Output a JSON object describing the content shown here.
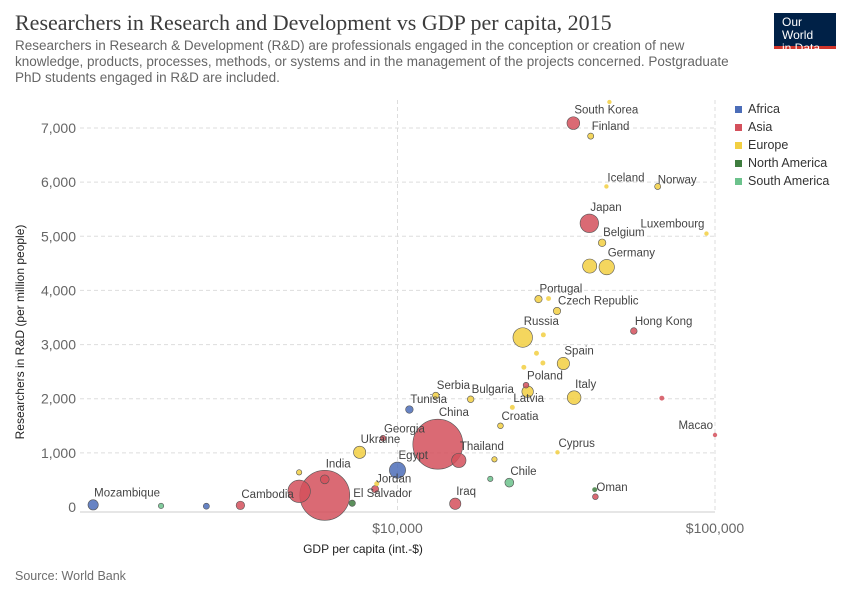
{
  "header": {
    "title": "Researchers in Research and Development vs GDP per capita, 2015",
    "subtitle": "Researchers in Research & Development (R&D) are professionals engaged in the conception or creation of new knowledge, products, processes, methods, or systems and in the management of the projects concerned. Postgraduate PhD students engaged in R&D are included.",
    "logo_line1": "Our World",
    "logo_line2": "in Data"
  },
  "footer": {
    "source": "Source: World Bank"
  },
  "colors": {
    "Africa": "#4c6db8",
    "Asia": "#d4505c",
    "Europe": "#f2cf42",
    "North America": "#3f7d3f",
    "South America": "#6cc28c"
  },
  "chart_data": {
    "type": "scatter",
    "xlabel": "GDP per capita (int.-$)",
    "ylabel": "Researchers in R&D (per million people)",
    "x_scale": "log",
    "xlim": [
      1000,
      100000
    ],
    "ylim": [
      0,
      7500
    ],
    "x_ticks": [
      {
        "value": 10000,
        "label": "$10,000"
      },
      {
        "value": 100000,
        "label": "$100,000"
      }
    ],
    "y_ticks": [
      {
        "value": 0,
        "label": "0"
      },
      {
        "value": 1000,
        "label": "1,000"
      },
      {
        "value": 2000,
        "label": "2,000"
      },
      {
        "value": 3000,
        "label": "3,000"
      },
      {
        "value": 4000,
        "label": "4,000"
      },
      {
        "value": 5000,
        "label": "5,000"
      },
      {
        "value": 6000,
        "label": "6,000"
      },
      {
        "value": 7000,
        "label": "7,000"
      }
    ],
    "grid": true,
    "legend_position": "right",
    "legend": [
      "Africa",
      "Asia",
      "Europe",
      "North America",
      "South America"
    ],
    "points": [
      {
        "label": "Mozambique",
        "region": "Africa",
        "x": 1100,
        "y": 40,
        "pop": 28
      },
      {
        "label": "",
        "region": "South America",
        "x": 1800,
        "y": 20,
        "pop": 3
      },
      {
        "label": "",
        "region": "Africa",
        "x": 2500,
        "y": 15,
        "pop": 5
      },
      {
        "label": "Cambodia",
        "region": "Asia",
        "x": 3200,
        "y": 30,
        "pop": 16
      },
      {
        "label": "",
        "region": "Asia",
        "x": 4900,
        "y": 290,
        "pop": 200
      },
      {
        "label": "",
        "region": "Europe",
        "x": 4900,
        "y": 640,
        "pop": 3
      },
      {
        "label": "India",
        "region": "Asia",
        "x": 5900,
        "y": 216,
        "pop": 1310
      },
      {
        "label": "",
        "region": "Asia",
        "x": 5900,
        "y": 510,
        "pop": 18
      },
      {
        "label": "El Salvador",
        "region": "North America",
        "x": 7200,
        "y": 70,
        "pop": 6
      },
      {
        "label": "Jordan",
        "region": "Asia",
        "x": 8500,
        "y": 330,
        "pop": 9
      },
      {
        "label": "",
        "region": "Europe",
        "x": 8600,
        "y": 430,
        "pop": 2
      },
      {
        "label": "Ukraine",
        "region": "Europe",
        "x": 7600,
        "y": 1010,
        "pop": 45
      },
      {
        "label": "Georgia",
        "region": "Asia",
        "x": 9000,
        "y": 1270,
        "pop": 4
      },
      {
        "label": "Egypt",
        "region": "Africa",
        "x": 10000,
        "y": 680,
        "pop": 92
      },
      {
        "label": "Tunisia",
        "region": "Africa",
        "x": 10900,
        "y": 1800,
        "pop": 11
      },
      {
        "label": "Serbia",
        "region": "Europe",
        "x": 13200,
        "y": 2060,
        "pop": 7
      },
      {
        "label": "China",
        "region": "Asia",
        "x": 13400,
        "y": 1160,
        "pop": 1370
      },
      {
        "label": "Thailand",
        "region": "Asia",
        "x": 15600,
        "y": 860,
        "pop": 68
      },
      {
        "label": "Iraq",
        "region": "Asia",
        "x": 15200,
        "y": 60,
        "pop": 36
      },
      {
        "label": "Bulgaria",
        "region": "Europe",
        "x": 17000,
        "y": 1990,
        "pop": 7
      },
      {
        "label": "",
        "region": "Europe",
        "x": 20200,
        "y": 880,
        "pop": 3
      },
      {
        "label": "Croatia",
        "region": "Europe",
        "x": 21100,
        "y": 1500,
        "pop": 4
      },
      {
        "label": "",
        "region": "South America",
        "x": 19600,
        "y": 520,
        "pop": 3
      },
      {
        "label": "Chile",
        "region": "South America",
        "x": 22500,
        "y": 450,
        "pop": 18
      },
      {
        "label": "Latvia",
        "region": "Europe",
        "x": 23000,
        "y": 1840,
        "pop": 2
      },
      {
        "label": "Russia",
        "region": "Europe",
        "x": 24800,
        "y": 3130,
        "pop": 144
      },
      {
        "label": "Poland",
        "region": "Asia",
        "x": 25400,
        "y": 2250,
        "pop": 4
      },
      {
        "label": "",
        "region": "Europe",
        "x": 25700,
        "y": 2130,
        "pop": 38
      },
      {
        "label": "",
        "region": "Europe",
        "x": 25000,
        "y": 2580,
        "pop": 2
      },
      {
        "label": "Portugal",
        "region": "Europe",
        "x": 27800,
        "y": 3840,
        "pop": 10
      },
      {
        "label": "",
        "region": "Europe",
        "x": 27400,
        "y": 2840,
        "pop": 2
      },
      {
        "label": "",
        "region": "Europe",
        "x": 28700,
        "y": 2660,
        "pop": 2
      },
      {
        "label": "",
        "region": "Europe",
        "x": 28800,
        "y": 3180,
        "pop": 2
      },
      {
        "label": "",
        "region": "Europe",
        "x": 29900,
        "y": 3850,
        "pop": 2
      },
      {
        "label": "Spain",
        "region": "Europe",
        "x": 33300,
        "y": 2650,
        "pop": 46
      },
      {
        "label": "Czech Republic",
        "region": "Europe",
        "x": 31800,
        "y": 3620,
        "pop": 10
      },
      {
        "label": "Cyprus",
        "region": "Europe",
        "x": 31900,
        "y": 1010,
        "pop": 1
      },
      {
        "label": "Italy",
        "region": "Europe",
        "x": 36000,
        "y": 2020,
        "pop": 60
      },
      {
        "label": "South Korea",
        "region": "Asia",
        "x": 35800,
        "y": 7090,
        "pop": 50
      },
      {
        "label": "Finland",
        "region": "Europe",
        "x": 40600,
        "y": 6850,
        "pop": 5
      },
      {
        "label": "Japan",
        "region": "Asia",
        "x": 40200,
        "y": 5240,
        "pop": 127
      },
      {
        "label": "",
        "region": "Europe",
        "x": 40300,
        "y": 4450,
        "pop": 65
      },
      {
        "label": "Germany",
        "region": "Europe",
        "x": 45600,
        "y": 4430,
        "pop": 81
      },
      {
        "label": "Belgium",
        "region": "Europe",
        "x": 44100,
        "y": 4880,
        "pop": 11
      },
      {
        "label": "Iceland",
        "region": "Europe",
        "x": 45500,
        "y": 5920,
        "pop": 1
      },
      {
        "label": "",
        "region": "Europe",
        "x": 46500,
        "y": 7480,
        "pop": 1
      },
      {
        "label": "",
        "region": "North America",
        "x": 41800,
        "y": 320,
        "pop": 2
      },
      {
        "label": "Oman",
        "region": "Asia",
        "x": 42000,
        "y": 190,
        "pop": 4
      },
      {
        "label": "Hong Kong",
        "region": "Asia",
        "x": 55500,
        "y": 3250,
        "pop": 7
      },
      {
        "label": "Norway",
        "region": "Europe",
        "x": 66000,
        "y": 5920,
        "pop": 5
      },
      {
        "label": "",
        "region": "Asia",
        "x": 68000,
        "y": 2010,
        "pop": 2
      },
      {
        "label": "Luxembourg",
        "region": "Europe",
        "x": 94000,
        "y": 5050,
        "pop": 1
      },
      {
        "label": "Macao",
        "region": "Asia",
        "x": 100000,
        "y": 1330,
        "pop": 1
      }
    ]
  }
}
